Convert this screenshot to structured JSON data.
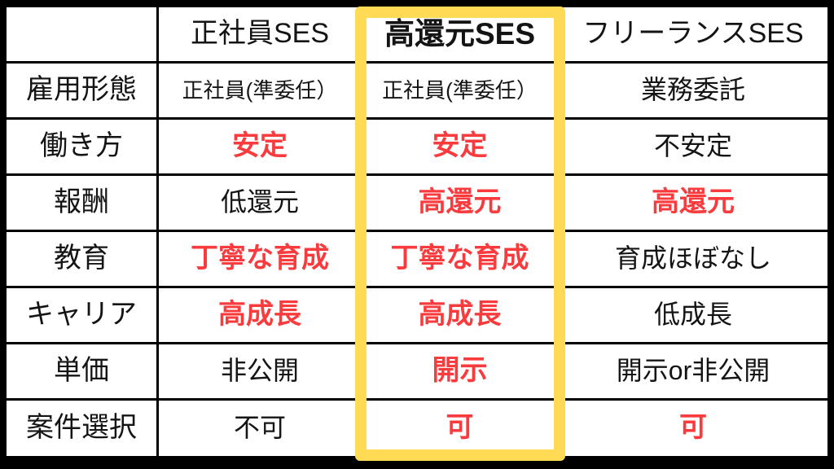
{
  "colors": {
    "line": "#000000",
    "text": "#141414",
    "red": "#fa3b3e",
    "yellow": "#ffdb55",
    "background": "#ffffff"
  },
  "table": {
    "columns": [
      "",
      "正社員SES",
      "高還元SES",
      "フリーランスSES"
    ],
    "highlighted_column": "高還元SES",
    "rows": [
      {
        "label": "雇用形態",
        "cells": [
          {
            "text": "正社員(準委任）",
            "tone": "default"
          },
          {
            "text": "正社員(準委任）",
            "tone": "default"
          },
          {
            "text": "業務委託",
            "tone": "default"
          }
        ]
      },
      {
        "label": "働き方",
        "cells": [
          {
            "text": "安定",
            "tone": "red"
          },
          {
            "text": "安定",
            "tone": "red"
          },
          {
            "text": "不安定",
            "tone": "default"
          }
        ]
      },
      {
        "label": "報酬",
        "cells": [
          {
            "text": "低還元",
            "tone": "default"
          },
          {
            "text": "高還元",
            "tone": "red"
          },
          {
            "text": "高還元",
            "tone": "red"
          }
        ]
      },
      {
        "label": "教育",
        "cells": [
          {
            "text": "丁寧な育成",
            "tone": "red"
          },
          {
            "text": "丁寧な育成",
            "tone": "red"
          },
          {
            "text": "育成ほぼなし",
            "tone": "default"
          }
        ]
      },
      {
        "label": "キャリア",
        "cells": [
          {
            "text": "高成長",
            "tone": "red"
          },
          {
            "text": "高成長",
            "tone": "red"
          },
          {
            "text": "低成長",
            "tone": "default"
          }
        ]
      },
      {
        "label": "単価",
        "cells": [
          {
            "text": "非公開",
            "tone": "default"
          },
          {
            "text": "開示",
            "tone": "red"
          },
          {
            "text": "開示or非公開",
            "tone": "default"
          }
        ]
      },
      {
        "label": "案件選択",
        "cells": [
          {
            "text": "不可",
            "tone": "default"
          },
          {
            "text": "可",
            "tone": "red"
          },
          {
            "text": "可",
            "tone": "red"
          }
        ]
      }
    ]
  },
  "chart_data": {
    "type": "table",
    "columns": [
      "",
      "正社員SES",
      "高還元SES",
      "フリーランスSES"
    ],
    "rows": [
      [
        "雇用形態",
        "正社員(準委任）",
        "正社員(準委任）",
        "業務委託"
      ],
      [
        "働き方",
        "安定",
        "安定",
        "不安定"
      ],
      [
        "報酬",
        "低還元",
        "高還元",
        "高還元"
      ],
      [
        "教育",
        "丁寧な育成",
        "丁寧な育成",
        "育成ほぼなし"
      ],
      [
        "キャリア",
        "高成長",
        "高成長",
        "低成長"
      ],
      [
        "単価",
        "非公開",
        "開示",
        "開示or非公開"
      ],
      [
        "案件選択",
        "不可",
        "可",
        "可"
      ]
    ],
    "highlighted_column": "高還元SES",
    "red_emphasis_cells": [
      [
        "働き方",
        "正社員SES"
      ],
      [
        "働き方",
        "高還元SES"
      ],
      [
        "報酬",
        "高還元SES"
      ],
      [
        "報酬",
        "フリーランスSES"
      ],
      [
        "教育",
        "正社員SES"
      ],
      [
        "教育",
        "高還元SES"
      ],
      [
        "キャリア",
        "正社員SES"
      ],
      [
        "キャリア",
        "高還元SES"
      ],
      [
        "単価",
        "高還元SES"
      ],
      [
        "案件選択",
        "高還元SES"
      ],
      [
        "案件選択",
        "フリーランスSES"
      ]
    ],
    "layout": {
      "grid": "on",
      "legend": "none"
    }
  }
}
